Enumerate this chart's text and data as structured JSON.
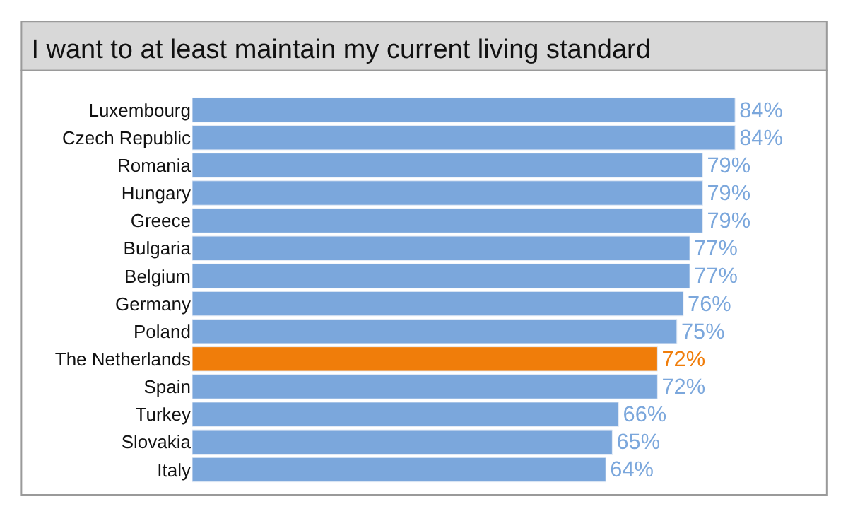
{
  "chart_data": {
    "type": "bar",
    "orientation": "horizontal",
    "title": "I want to at least maintain my current living standard",
    "categories": [
      "Luxembourg",
      "Czech Republic",
      "Romania",
      "Hungary",
      "Greece",
      "Bulgaria",
      "Belgium",
      "Germany",
      "Poland",
      "The Netherlands",
      "Spain",
      "Turkey",
      "Slovakia",
      "Italy"
    ],
    "values": [
      84,
      84,
      79,
      79,
      79,
      77,
      77,
      76,
      75,
      72,
      72,
      66,
      65,
      64
    ],
    "value_labels": [
      "84%",
      "84%",
      "79%",
      "79%",
      "79%",
      "77%",
      "77%",
      "76%",
      "75%",
      "72%",
      "72%",
      "66%",
      "65%",
      "64%"
    ],
    "colors": [
      "#7ba7dc",
      "#7ba7dc",
      "#7ba7dc",
      "#7ba7dc",
      "#7ba7dc",
      "#7ba7dc",
      "#7ba7dc",
      "#7ba7dc",
      "#7ba7dc",
      "#f07d0a",
      "#7ba7dc",
      "#7ba7dc",
      "#7ba7dc",
      "#7ba7dc"
    ],
    "legend": false
  }
}
